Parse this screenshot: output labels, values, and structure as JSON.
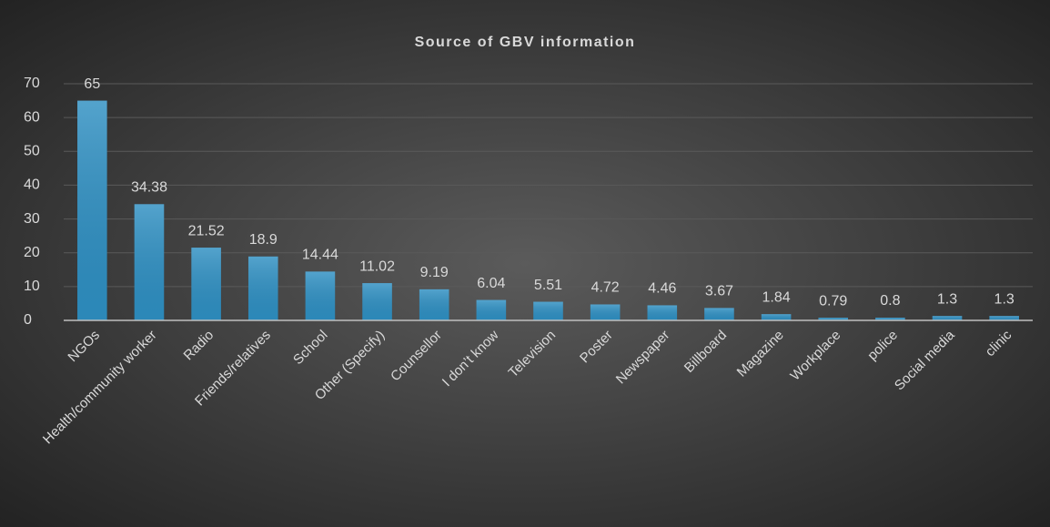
{
  "chart_data": {
    "type": "bar",
    "title": "Source of GBV information",
    "categories": [
      "NGOs",
      "Health/community worker",
      "Radio",
      "Friends/relatives",
      "School",
      "Other (Specify)",
      "Counsellor",
      "I don’t know",
      "Television",
      "Poster",
      "Newspaper",
      "Billboard",
      "Magazine",
      "Workplace",
      "police",
      "Social media",
      "clinic"
    ],
    "values": [
      65,
      34.38,
      21.52,
      18.9,
      14.44,
      11.02,
      9.19,
      6.04,
      5.51,
      4.72,
      4.46,
      3.67,
      1.84,
      0.79,
      0.8,
      1.3,
      1.3
    ],
    "color": "#2e8fc2",
    "ylim": [
      0,
      70
    ],
    "yticks": [
      0,
      10,
      20,
      30,
      40,
      50,
      60,
      70
    ],
    "grid": true
  }
}
